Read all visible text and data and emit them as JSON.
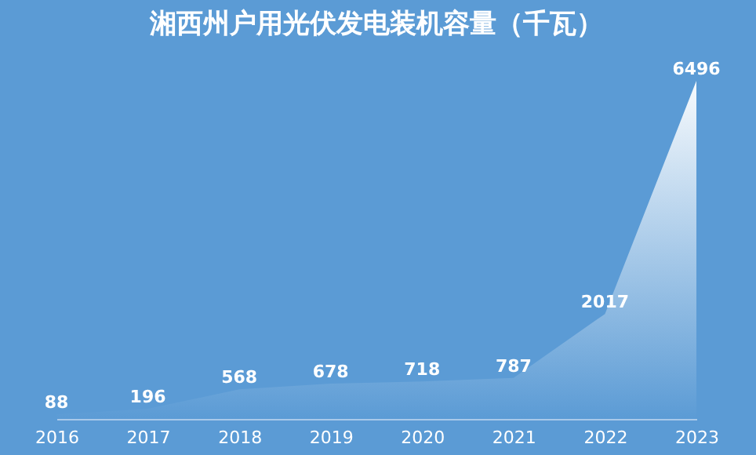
{
  "chart_data": {
    "type": "area",
    "title": "湘西州户用光伏发电装机容量（千瓦）",
    "categories": [
      "2016",
      "2017",
      "2018",
      "2019",
      "2020",
      "2021",
      "2022",
      "2023"
    ],
    "series": [
      {
        "color": "#ffffff",
        "values": [
          88,
          196,
          568,
          678,
          718,
          787,
          2017,
          6496
        ]
      }
    ],
    "data_labels": true,
    "grid": false,
    "tick_labels": "x"
  }
}
